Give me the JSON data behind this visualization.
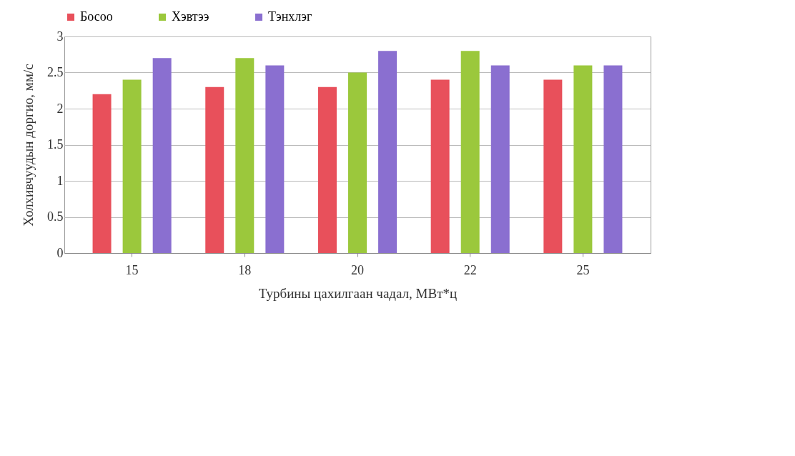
{
  "chart_data": {
    "type": "bar",
    "xlabel": "Турбины цахилгаан чадал, МВт*ц",
    "ylabel": "Холхивчуудын доргио, мм/с",
    "categories": [
      "15",
      "18",
      "20",
      "22",
      "25"
    ],
    "series": [
      {
        "name": "Босоо",
        "color": "#e8505b",
        "values": [
          2.2,
          2.3,
          2.3,
          2.4,
          2.4
        ]
      },
      {
        "name": "Хэвтээ",
        "color": "#9bc83c",
        "values": [
          2.4,
          2.7,
          2.5,
          2.8,
          2.6
        ]
      },
      {
        "name": "Тэнхлэг",
        "color": "#8a6fd0",
        "values": [
          2.7,
          2.6,
          2.8,
          2.6,
          2.6
        ]
      }
    ],
    "ylim": [
      0,
      3
    ],
    "yticks": [
      0,
      0.5,
      1,
      1.5,
      2,
      2.5,
      3
    ],
    "grid": "y",
    "legend": "top"
  }
}
